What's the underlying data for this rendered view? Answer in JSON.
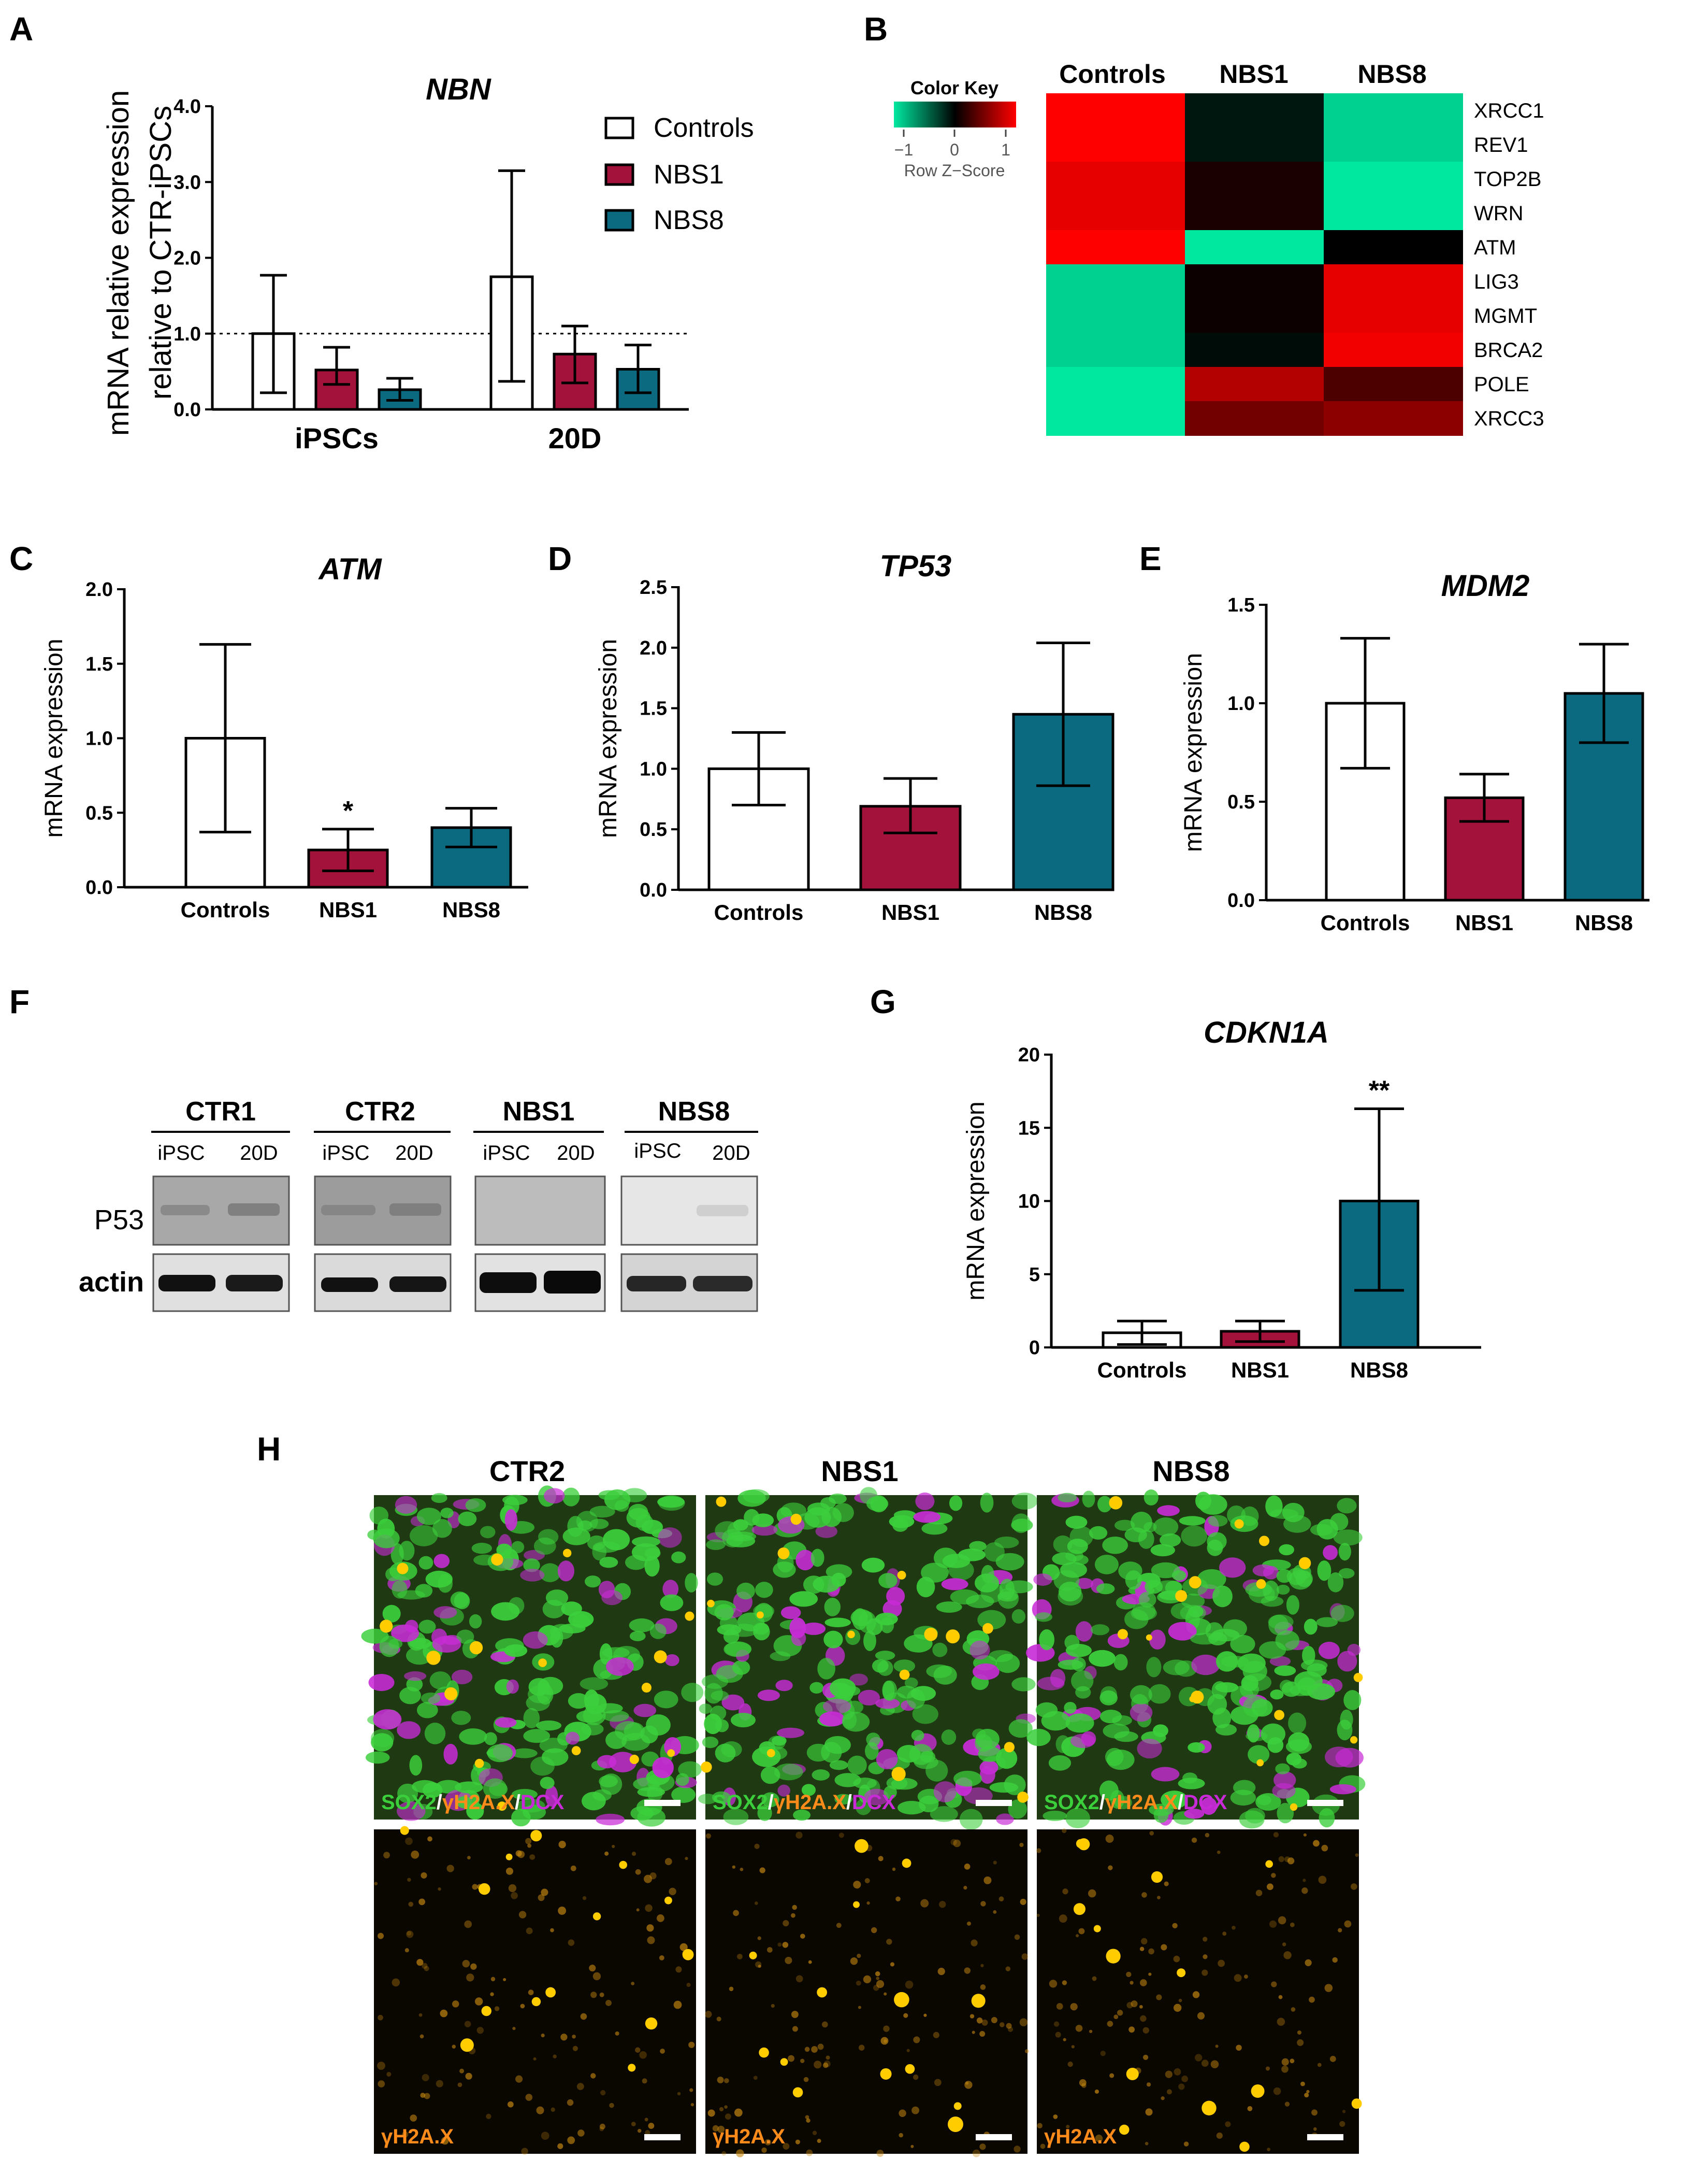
{
  "colors": {
    "controls": "#ffffff",
    "nbs1": "#a3123a",
    "nbs8": "#0b6a80",
    "heat_low": "#00e8a0",
    "heat_mid": "#000000",
    "heat_high": "#ff0000",
    "if_green": "#3ccf3c",
    "if_magenta": "#c82bd6",
    "if_yellow": "#ffcc00"
  },
  "panels": {
    "A": {
      "label": "A"
    },
    "B": {
      "label": "B",
      "color_key_title": "Color Key",
      "color_key_ticks": [
        "−1",
        "0",
        "1"
      ],
      "color_key_caption": "Row Z−Score",
      "columns": [
        "Controls",
        "NBS1",
        "NBS8"
      ],
      "rows": [
        "XRCC1",
        "REV1",
        "TOP2B",
        "WRN",
        "ATM",
        "LIG3",
        "MGMT",
        "BRCA2",
        "POLE",
        "XRCC3"
      ]
    },
    "C": {
      "label": "C"
    },
    "D": {
      "label": "D"
    },
    "E": {
      "label": "E"
    },
    "F": {
      "label": "F",
      "groups": [
        "CTR1",
        "CTR2",
        "NBS1",
        "NBS8"
      ],
      "lanes": [
        "iPSC",
        "20D"
      ],
      "rows": [
        "P53",
        "actin"
      ]
    },
    "G": {
      "label": "G"
    },
    "H": {
      "label": "H",
      "columns": [
        "CTR2",
        "NBS1",
        "NBS8"
      ],
      "merge_label": {
        "sox2": "SOX2",
        "sep1": "/",
        "gamma": "γH2A.X",
        "sep2": "/",
        "dcx": "DCX"
      },
      "single_label": "γH2A.X"
    }
  },
  "chart_data": [
    {
      "id": "A",
      "type": "bar",
      "title": "NBN",
      "ylabel": [
        "mRNA relative expression",
        "relative to CTR-iPSCs"
      ],
      "ylim": [
        0,
        4.0
      ],
      "yticks": [
        "0.0",
        "1.0",
        "2.0",
        "3.0",
        "4.0"
      ],
      "reference_line": 1.0,
      "categories": [
        "iPSCs",
        "20D"
      ],
      "series": [
        {
          "name": "Controls",
          "values": [
            1.0,
            1.75
          ],
          "err_low": [
            0.22,
            0.37
          ],
          "err_high": [
            1.77,
            3.15
          ]
        },
        {
          "name": "NBS1",
          "values": [
            0.52,
            0.73
          ],
          "err_low": [
            0.33,
            0.35
          ],
          "err_high": [
            0.82,
            1.1
          ]
        },
        {
          "name": "NBS8",
          "values": [
            0.26,
            0.53
          ],
          "err_low": [
            0.12,
            0.22
          ],
          "err_high": [
            0.41,
            0.85
          ]
        }
      ]
    },
    {
      "id": "B",
      "type": "heatmap",
      "columns": [
        "Controls",
        "NBS1",
        "NBS8"
      ],
      "rows": [
        "XRCC1",
        "REV1",
        "TOP2B",
        "WRN",
        "ATM",
        "LIG3",
        "MGMT",
        "BRCA2",
        "POLE",
        "XRCC3"
      ],
      "values": [
        [
          1.0,
          -0.1,
          -0.9
        ],
        [
          1.0,
          -0.1,
          -0.9
        ],
        [
          0.9,
          0.1,
          -1.0
        ],
        [
          0.9,
          0.1,
          -1.0
        ],
        [
          1.0,
          -1.0,
          0.0
        ],
        [
          -0.9,
          0.05,
          0.9
        ],
        [
          -0.9,
          0.05,
          0.9
        ],
        [
          -0.9,
          -0.05,
          0.95
        ],
        [
          -1.0,
          0.7,
          0.3
        ],
        [
          -1.0,
          0.45,
          0.55
        ]
      ],
      "color_key": {
        "min": -1,
        "max": 1
      }
    },
    {
      "id": "C",
      "type": "bar",
      "title": "ATM",
      "ylabel": "mRNA expression",
      "ylim": [
        0,
        2.0
      ],
      "yticks": [
        "0.0",
        "0.5",
        "1.0",
        "1.5",
        "2.0"
      ],
      "categories": [
        "Controls",
        "NBS1",
        "NBS8"
      ],
      "values": [
        1.0,
        0.25,
        0.4
      ],
      "err_low": [
        0.37,
        0.11,
        0.27
      ],
      "err_high": [
        1.63,
        0.39,
        0.53
      ],
      "annotations": [
        "",
        "*",
        ""
      ]
    },
    {
      "id": "D",
      "type": "bar",
      "title": "TP53",
      "ylabel": "mRNA expression",
      "ylim": [
        0,
        2.5
      ],
      "yticks": [
        "0.0",
        "0.5",
        "1.0",
        "1.5",
        "2.0",
        "2.5"
      ],
      "categories": [
        "Controls",
        "NBS1",
        "NBS8"
      ],
      "values": [
        1.0,
        0.69,
        1.45
      ],
      "err_low": [
        0.7,
        0.47,
        0.86
      ],
      "err_high": [
        1.3,
        0.92,
        2.04
      ],
      "annotations": [
        "",
        "",
        ""
      ]
    },
    {
      "id": "E",
      "type": "bar",
      "title": "MDM2",
      "ylabel": "mRNA expression",
      "ylim": [
        0,
        1.5
      ],
      "yticks": [
        "0.0",
        "0.5",
        "1.0",
        "1.5"
      ],
      "categories": [
        "Controls",
        "NBS1",
        "NBS8"
      ],
      "values": [
        1.0,
        0.52,
        1.05
      ],
      "err_low": [
        0.67,
        0.4,
        0.8
      ],
      "err_high": [
        1.33,
        0.64,
        1.3
      ],
      "annotations": [
        "",
        "",
        ""
      ]
    },
    {
      "id": "G",
      "type": "bar",
      "title": "CDKN1A",
      "ylabel": "mRNA expression",
      "ylim": [
        0,
        20
      ],
      "yticks": [
        "0",
        "5",
        "10",
        "15",
        "20"
      ],
      "categories": [
        "Controls",
        "NBS1",
        "NBS8"
      ],
      "values": [
        1.0,
        1.1,
        10.0
      ],
      "err_low": [
        0.2,
        0.4,
        3.9
      ],
      "err_high": [
        1.8,
        1.8,
        16.3
      ],
      "annotations": [
        "",
        "",
        "**"
      ]
    }
  ]
}
